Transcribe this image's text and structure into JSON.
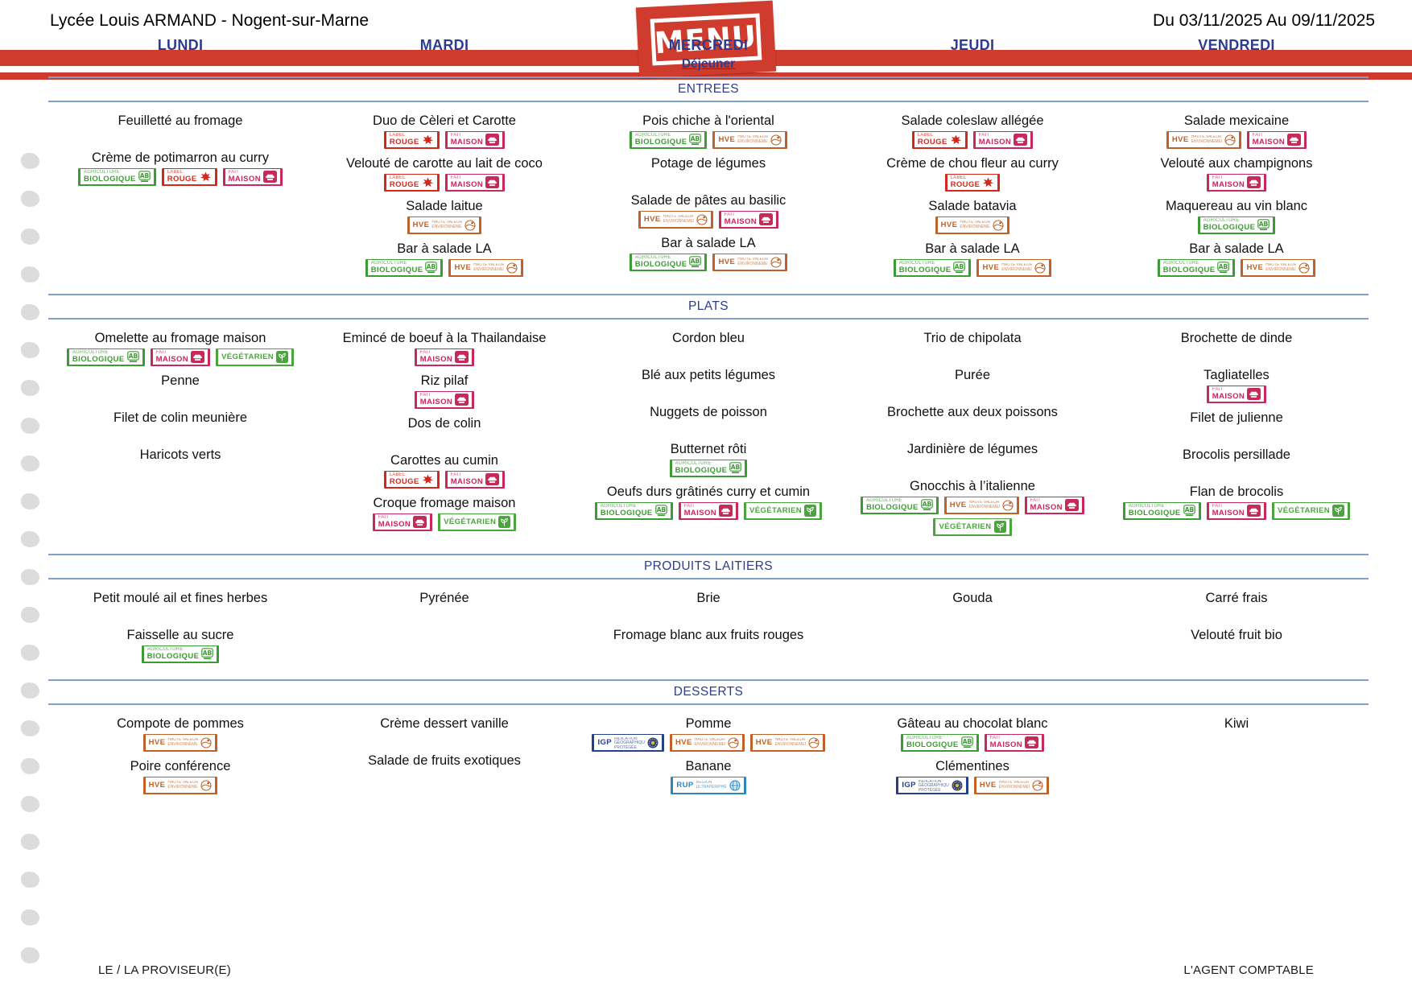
{
  "header": {
    "school": "Lycée Louis ARMAND - Nogent-sur-Marne",
    "date_range": "Du 03/11/2025 Au 09/11/2025",
    "logo_text": "MENU"
  },
  "days": [
    "LUNDI",
    "MARDI",
    "MERCREDI",
    "JEUDI",
    "VENDREDI"
  ],
  "meal_label": "Déjeuner",
  "badges": {
    "bio": {
      "label_small": "AGRICULTURE",
      "label_big": "BIOLOGIQUE",
      "icon": "ab-logo-icon",
      "color": "#3d9b35",
      "layout": "stacked"
    },
    "rouge": {
      "label_small": "LABEL",
      "label_big": "ROUGE",
      "icon": "rooster-icon",
      "color": "#d3281e",
      "layout": "stacked"
    },
    "maison": {
      "label_small": "FAIT",
      "label_big": "MAISON",
      "icon": "chef-hat-icon",
      "color": "#c8285a",
      "layout": "stacked"
    },
    "vegetarien": {
      "label_small": "",
      "label_big": "VÉGÉTARIEN",
      "icon": "leaf-icon",
      "color": "#4aa53c",
      "layout": "single"
    },
    "hve": {
      "label_small": "HAUTE VALEUR ENVIRONNEMENTALE",
      "label_big": "HVE",
      "icon": "hve-circle-icon",
      "color": "#c06227",
      "layout": "inline"
    },
    "igp": {
      "label_small": "INDICATION GÉOGRAPHIQUE PROTÉGÉE",
      "label_big": "IGP",
      "icon": "eu-stars-icon",
      "color": "#27408b",
      "layout": "inline"
    },
    "rup": {
      "label_small": "RÉGION ULTRAPÉRIPHÉRIQUE",
      "label_big": "RUP",
      "icon": "globe-icon",
      "color": "#2e86c1",
      "layout": "inline"
    }
  },
  "sections": [
    {
      "title": "ENTREES",
      "columns": [
        [
          {
            "name": "Feuilletté au fromage",
            "badges": []
          },
          {
            "name": "Crème de potimarron au curry",
            "badges": [
              "bio",
              "rouge",
              "maison"
            ]
          }
        ],
        [
          {
            "name": "Duo de Cèleri et Carotte",
            "badges": [
              "rouge",
              "maison"
            ]
          },
          {
            "name": "Velouté de carotte au lait de coco",
            "badges": [
              "rouge",
              "maison"
            ]
          },
          {
            "name": "Salade laitue",
            "badges": [
              "hve"
            ]
          },
          {
            "name": "Bar à salade LA",
            "badges": [
              "bio",
              "hve"
            ]
          }
        ],
        [
          {
            "name": "Pois chiche à l'oriental",
            "badges": [
              "bio",
              "hve"
            ]
          },
          {
            "name": "Potage de légumes",
            "badges": []
          },
          {
            "name": "Salade de pâtes au basilic",
            "badges": [
              "hve",
              "maison"
            ]
          },
          {
            "name": "Bar à salade LA",
            "badges": [
              "bio",
              "hve"
            ]
          }
        ],
        [
          {
            "name": "Salade coleslaw allégée",
            "badges": [
              "rouge",
              "maison"
            ]
          },
          {
            "name": "Crème de chou fleur au curry",
            "badges": [
              "rouge"
            ]
          },
          {
            "name": "Salade batavia",
            "badges": [
              "hve"
            ]
          },
          {
            "name": "Bar à salade LA",
            "badges": [
              "bio",
              "hve"
            ]
          }
        ],
        [
          {
            "name": "Salade mexicaine",
            "badges": [
              "hve",
              "maison"
            ]
          },
          {
            "name": "Velouté aux champignons",
            "badges": [
              "maison"
            ]
          },
          {
            "name": "Maquereau au vin blanc",
            "badges": [
              "bio"
            ]
          },
          {
            "name": "Bar à salade LA",
            "badges": [
              "bio",
              "hve"
            ]
          }
        ]
      ]
    },
    {
      "title": "PLATS",
      "columns": [
        [
          {
            "name": "Omelette au fromage maison",
            "badges": [
              "bio",
              "maison",
              "vegetarien"
            ]
          },
          {
            "name": "Penne",
            "badges": []
          },
          {
            "name": "Filet de colin meunière",
            "badges": []
          },
          {
            "name": "Haricots verts",
            "badges": []
          }
        ],
        [
          {
            "name": "Emincé de boeuf à la Thailandaise",
            "badges": [
              "maison"
            ]
          },
          {
            "name": "Riz pilaf",
            "badges": [
              "maison"
            ]
          },
          {
            "name": "Dos de colin",
            "badges": []
          },
          {
            "name": "Carottes au cumin",
            "badges": [
              "rouge",
              "maison"
            ]
          },
          {
            "name": "Croque fromage maison",
            "badges": [
              "maison",
              "vegetarien"
            ]
          }
        ],
        [
          {
            "name": "Cordon bleu",
            "badges": []
          },
          {
            "name": "Blé aux petits légumes",
            "badges": []
          },
          {
            "name": "Nuggets de poisson",
            "badges": []
          },
          {
            "name": "Butternet rôti",
            "badges": [
              "bio"
            ]
          },
          {
            "name": "Oeufs durs grâtinés curry et cumin",
            "badges": [
              "bio",
              "maison",
              "vegetarien"
            ]
          }
        ],
        [
          {
            "name": "Trio de chipolata",
            "badges": []
          },
          {
            "name": "Purée",
            "badges": []
          },
          {
            "name": "Brochette aux deux poissons",
            "badges": []
          },
          {
            "name": "Jardinière de légumes",
            "badges": []
          },
          {
            "name": "Gnocchis à l’italienne",
            "badges": [
              "bio",
              "hve",
              "maison",
              "vegetarien"
            ]
          }
        ],
        [
          {
            "name": "Brochette de dinde",
            "badges": []
          },
          {
            "name": "Tagliatelles",
            "badges": [
              "maison"
            ]
          },
          {
            "name": "Filet de julienne",
            "badges": []
          },
          {
            "name": "Brocolis persillade",
            "badges": []
          },
          {
            "name": "Flan de brocolis",
            "badges": [
              "bio",
              "maison",
              "vegetarien"
            ]
          }
        ]
      ]
    },
    {
      "title": "PRODUITS LAITIERS",
      "columns": [
        [
          {
            "name": "Petit moulé ail et fines herbes",
            "badges": []
          },
          {
            "name": "Faisselle au sucre",
            "badges": [
              "bio"
            ]
          }
        ],
        [
          {
            "name": "Pyrénée",
            "badges": []
          }
        ],
        [
          {
            "name": "Brie",
            "badges": []
          },
          {
            "name": "Fromage blanc aux fruits rouges",
            "badges": []
          }
        ],
        [
          {
            "name": "Gouda",
            "badges": []
          }
        ],
        [
          {
            "name": "Carré frais",
            "badges": []
          },
          {
            "name": "Velouté fruit bio",
            "badges": []
          }
        ]
      ]
    },
    {
      "title": "DESSERTS",
      "columns": [
        [
          {
            "name": "Compote de pommes",
            "badges": [
              "hve"
            ]
          },
          {
            "name": "Poire conférence",
            "badges": [
              "hve"
            ]
          }
        ],
        [
          {
            "name": "Crème dessert vanille",
            "badges": []
          },
          {
            "name": "Salade de fruits exotiques",
            "badges": []
          }
        ],
        [
          {
            "name": "Pomme",
            "badges": [
              "igp",
              "hve",
              "hve"
            ]
          },
          {
            "name": "Banane",
            "badges": [
              "rup"
            ]
          }
        ],
        [
          {
            "name": "Gâteau au chocolat blanc",
            "badges": [
              "bio",
              "maison"
            ]
          },
          {
            "name": "Clémentines",
            "badges": [
              "igp",
              "hve"
            ]
          }
        ],
        [
          {
            "name": "Kiwi",
            "badges": []
          }
        ]
      ]
    }
  ],
  "footer": {
    "left": "LE / LA PROVISEUR(E)",
    "right": "L'AGENT COMPTABLE"
  }
}
